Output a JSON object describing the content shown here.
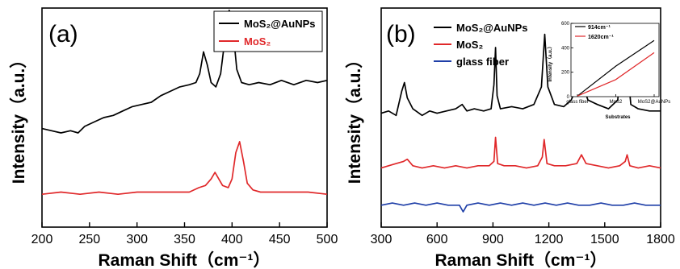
{
  "chart_data": [
    {
      "panel": "(a)",
      "type": "line",
      "xlabel": "Raman Shift",
      "xlabel_unit": "（cm⁻¹）",
      "ylabel": "Intensity（a.u.）",
      "xlim": [
        200,
        500
      ],
      "ylim": [
        0,
        10
      ],
      "xticks": [
        200,
        250,
        300,
        350,
        400,
        450,
        500
      ],
      "yticks_labeled": false,
      "grid": false,
      "legend": "top-right",
      "series": [
        {
          "name": "MoS₂@AuNPs",
          "color": "#000000",
          "x": [
            200,
            210,
            220,
            230,
            238,
            245,
            255,
            265,
            275,
            285,
            295,
            305,
            315,
            325,
            335,
            345,
            355,
            362,
            366,
            370,
            374,
            378,
            383,
            388,
            392,
            397,
            401,
            405,
            410,
            418,
            428,
            440,
            452,
            465,
            478,
            490,
            500
          ],
          "y": [
            4.5,
            4.4,
            4.3,
            4.4,
            4.3,
            4.6,
            4.8,
            5.0,
            5.1,
            5.3,
            5.5,
            5.6,
            5.7,
            6.0,
            6.2,
            6.4,
            6.5,
            6.6,
            7.0,
            8.0,
            7.4,
            6.6,
            6.4,
            7.0,
            8.4,
            9.9,
            9.0,
            7.2,
            6.6,
            6.5,
            6.6,
            6.5,
            6.7,
            6.5,
            6.7,
            6.6,
            6.7
          ]
        },
        {
          "name": "MoS₂",
          "color": "#e0282a",
          "x": [
            200,
            220,
            240,
            260,
            280,
            300,
            320,
            340,
            355,
            365,
            372,
            378,
            382,
            386,
            390,
            396,
            400,
            404,
            408,
            412,
            416,
            422,
            430,
            445,
            460,
            480,
            500
          ],
          "y": [
            1.5,
            1.6,
            1.5,
            1.6,
            1.5,
            1.6,
            1.6,
            1.6,
            1.6,
            1.8,
            1.9,
            2.2,
            2.5,
            2.2,
            1.9,
            1.8,
            2.2,
            3.4,
            3.9,
            3.0,
            2.0,
            1.7,
            1.6,
            1.6,
            1.6,
            1.6,
            1.5
          ]
        }
      ]
    },
    {
      "panel": "(b)",
      "type": "line",
      "xlabel": "Raman Shift",
      "xlabel_unit": "（cm⁻¹）",
      "ylabel": "Intensity（a.u.）",
      "xlim": [
        300,
        1800
      ],
      "ylim": [
        0,
        10
      ],
      "xticks": [
        300,
        600,
        900,
        1200,
        1500,
        1800
      ],
      "yticks_labeled": false,
      "grid": false,
      "legend": "top-left",
      "series": [
        {
          "name": "MoS₂@AuNPs",
          "color": "#000000",
          "x": [
            300,
            340,
            380,
            410,
            425,
            440,
            470,
            520,
            560,
            600,
            650,
            700,
            735,
            760,
            800,
            850,
            890,
            905,
            914,
            922,
            940,
            1000,
            1060,
            1120,
            1160,
            1178,
            1195,
            1230,
            1280,
            1320,
            1350,
            1370,
            1385,
            1410,
            1460,
            1520,
            1570,
            1585,
            1595,
            1605,
            1615,
            1625,
            1640,
            1680,
            1740,
            1800
          ],
          "y": [
            5.2,
            5.3,
            5.1,
            6.2,
            6.6,
            5.9,
            5.4,
            5.1,
            5.3,
            5.2,
            5.3,
            5.4,
            5.6,
            5.3,
            5.4,
            5.3,
            5.4,
            6.5,
            8.2,
            6.0,
            5.4,
            5.5,
            5.4,
            5.6,
            6.4,
            8.8,
            6.4,
            5.6,
            5.5,
            5.8,
            6.4,
            7.6,
            6.4,
            5.8,
            5.6,
            5.4,
            5.8,
            7.3,
            6.2,
            7.2,
            6.4,
            7.0,
            5.6,
            5.4,
            5.3,
            5.3
          ]
        },
        {
          "name": "MoS₂",
          "color": "#e0282a",
          "x": [
            300,
            340,
            380,
            420,
            440,
            470,
            520,
            580,
            640,
            700,
            760,
            820,
            880,
            905,
            914,
            925,
            960,
            1020,
            1080,
            1140,
            1165,
            1175,
            1190,
            1230,
            1290,
            1350,
            1375,
            1400,
            1460,
            1520,
            1580,
            1610,
            1620,
            1635,
            1680,
            1740,
            1800
          ],
          "y": [
            2.7,
            2.8,
            2.9,
            3.0,
            3.1,
            2.8,
            2.7,
            2.8,
            2.7,
            2.8,
            2.7,
            2.8,
            2.8,
            3.0,
            4.1,
            2.9,
            2.8,
            2.8,
            2.7,
            2.8,
            3.2,
            4.0,
            2.9,
            2.8,
            2.8,
            2.9,
            3.3,
            2.9,
            2.8,
            2.7,
            2.8,
            3.0,
            3.3,
            2.8,
            2.7,
            2.8,
            2.7
          ]
        },
        {
          "name": "glass fiber",
          "color": "#1f3fa8",
          "x": [
            300,
            360,
            420,
            480,
            540,
            600,
            660,
            720,
            740,
            760,
            820,
            880,
            940,
            1000,
            1060,
            1120,
            1180,
            1240,
            1300,
            1360,
            1420,
            1480,
            1540,
            1600,
            1660,
            1720,
            1800
          ],
          "y": [
            1.0,
            1.1,
            1.0,
            1.1,
            1.0,
            1.1,
            1.0,
            1.0,
            0.7,
            1.0,
            1.1,
            1.0,
            1.1,
            1.0,
            1.1,
            1.0,
            1.1,
            1.0,
            1.1,
            1.0,
            1.0,
            1.1,
            1.0,
            1.0,
            1.1,
            1.0,
            1.0
          ]
        }
      ],
      "inset": {
        "type": "line",
        "xlabel": "Substrates",
        "ylabel": "Intensity（a.u.）",
        "categories": [
          "glass fiber",
          "MoS2",
          "MoS2@AuNPs"
        ],
        "ylim": [
          0,
          600
        ],
        "yticks": [
          0,
          200,
          400,
          600
        ],
        "series": [
          {
            "name": "914cm⁻¹",
            "color": "#000000",
            "values": [
              5,
              250,
              460
            ]
          },
          {
            "name": "1620cm⁻¹",
            "color": "#e0282a",
            "values": [
              5,
              140,
              360
            ]
          }
        ]
      }
    }
  ]
}
